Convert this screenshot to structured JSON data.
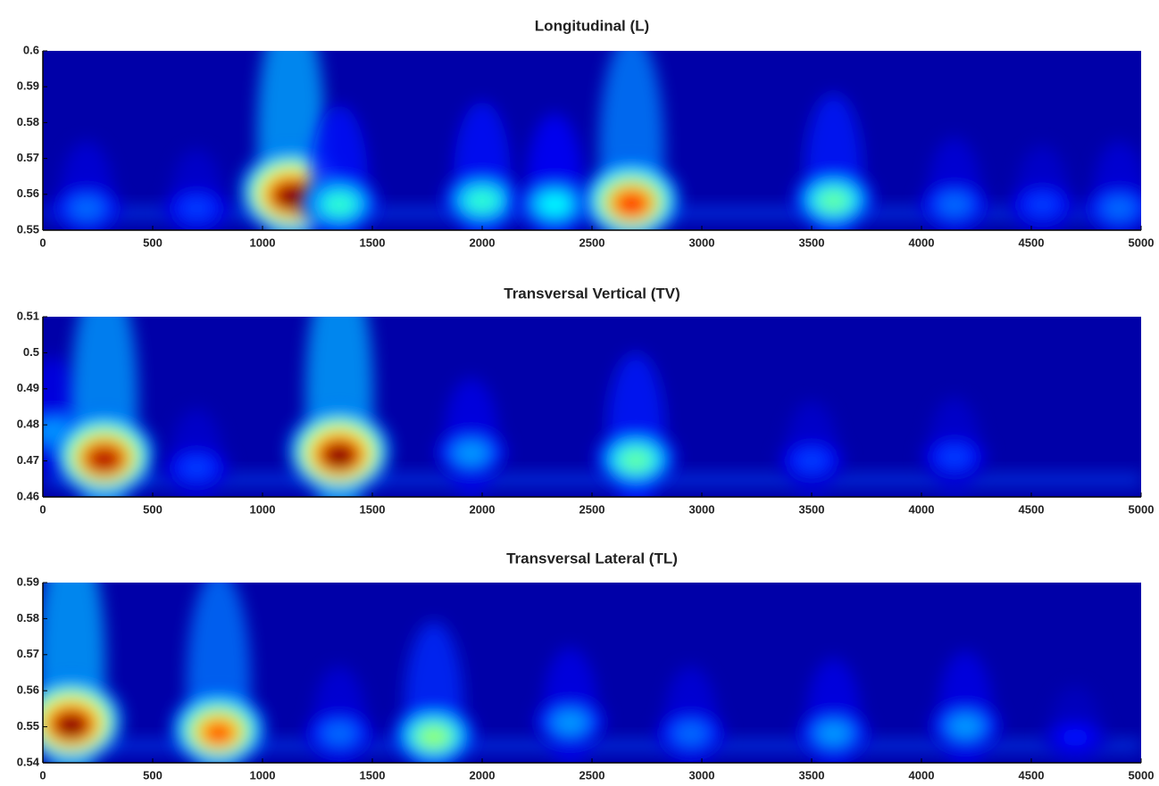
{
  "chart_data": [
    {
      "type": "heatmap",
      "title": "Longitudinal (L)",
      "xlim": [
        0,
        5000
      ],
      "xticks": [
        0,
        500,
        1000,
        1500,
        2000,
        2500,
        3000,
        3500,
        4000,
        4500,
        5000
      ],
      "ylim": [
        0.55,
        0.6
      ],
      "yticks": [
        0.55,
        0.56,
        0.57,
        0.58,
        0.59,
        0.6
      ],
      "x": [
        200,
        700,
        1130,
        1350,
        2000,
        2330,
        2680,
        3600,
        4150,
        4550,
        4900
      ],
      "y": [
        0.556,
        0.556,
        0.559,
        0.557,
        0.558,
        0.557,
        0.557,
        0.558,
        0.557,
        0.557,
        0.556
      ],
      "values": [
        0.2,
        0.15,
        1.0,
        0.4,
        0.4,
        0.35,
        0.85,
        0.45,
        0.2,
        0.15,
        0.2
      ]
    },
    {
      "type": "heatmap",
      "title": "Transversal Vertical (TV)",
      "xlim": [
        0,
        5000
      ],
      "xticks": [
        0,
        500,
        1000,
        1500,
        2000,
        2500,
        3000,
        3500,
        4000,
        4500,
        5000
      ],
      "ylim": [
        0.46,
        0.51
      ],
      "yticks": [
        0.46,
        0.47,
        0.48,
        0.49,
        0.5,
        0.51
      ],
      "x": [
        50,
        280,
        700,
        1350,
        1950,
        2700,
        3500,
        4150
      ],
      "y": [
        0.478,
        0.47,
        0.468,
        0.471,
        0.472,
        0.47,
        0.47,
        0.471
      ],
      "values": [
        0.25,
        0.95,
        0.15,
        1.0,
        0.25,
        0.45,
        0.15,
        0.15
      ]
    },
    {
      "type": "heatmap",
      "title": "Transversal Lateral (TL)",
      "xlim": [
        0,
        5000
      ],
      "xticks": [
        0,
        500,
        1000,
        1500,
        2000,
        2500,
        3000,
        3500,
        4000,
        4500,
        5000
      ],
      "ylim": [
        0.54,
        0.59
      ],
      "yticks": [
        0.54,
        0.55,
        0.56,
        0.57,
        0.58,
        0.59
      ],
      "x": [
        130,
        800,
        1350,
        1780,
        2400,
        2950,
        3600,
        4200,
        4700
      ],
      "y": [
        0.55,
        0.548,
        0.548,
        0.547,
        0.551,
        0.548,
        0.548,
        0.55,
        0.547
      ],
      "values": [
        1.0,
        0.8,
        0.2,
        0.5,
        0.25,
        0.2,
        0.25,
        0.25,
        0.1
      ]
    }
  ]
}
